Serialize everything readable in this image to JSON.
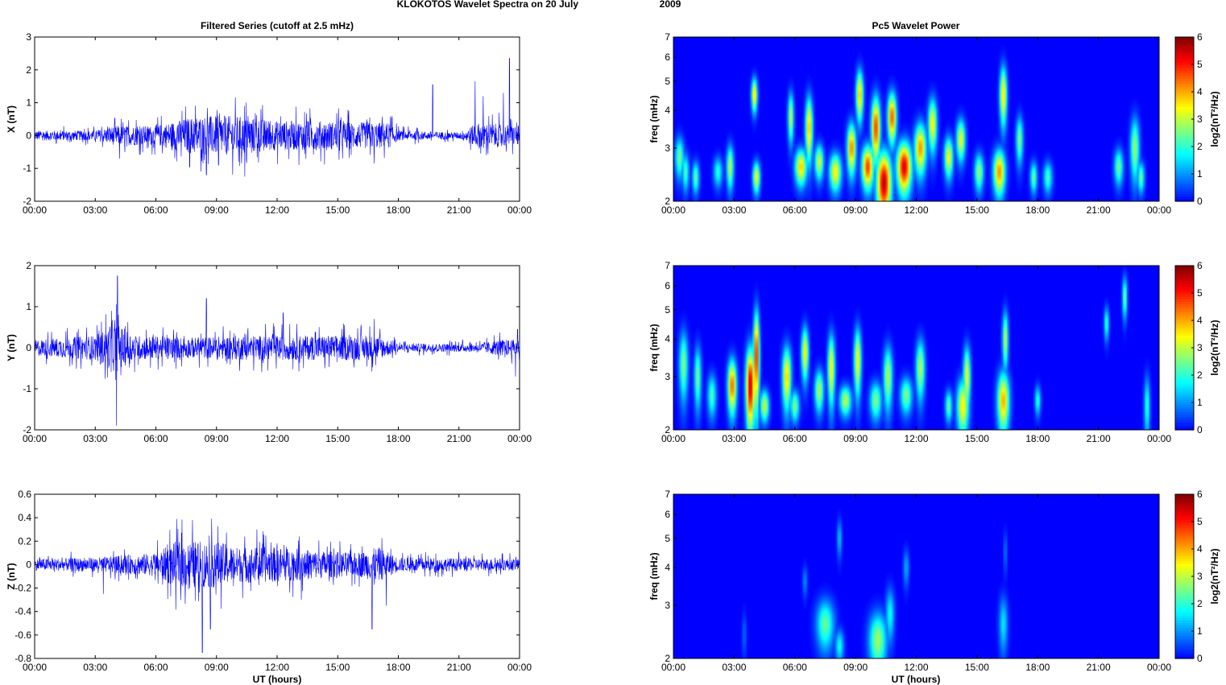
{
  "figure": {
    "title_left": "KLOKOTOS Wavelet Spectra on 20 July",
    "title_right": "2009",
    "left_column_title": "Filtered Series (cutoff at 2.5 mHz)",
    "right_column_title": "Pc5 Wavelet Power",
    "xlabel": "UT (hours)"
  },
  "colors": {
    "series_line": "#0000ff",
    "colormap": "jet"
  },
  "chart_data": [
    {
      "type": "line",
      "panel": "X",
      "ylabel": "X (nT)",
      "x_ticks": [
        "00:00",
        "03:00",
        "06:00",
        "09:00",
        "12:00",
        "15:00",
        "18:00",
        "21:00",
        "00:00"
      ],
      "xlim_hours": [
        0,
        24
      ],
      "ylim": [
        -2,
        3
      ],
      "y_ticks": [
        "-2",
        "-1",
        "0",
        "1",
        "2",
        "3"
      ],
      "noise_envelope": [
        [
          0,
          0.15
        ],
        [
          3,
          0.15
        ],
        [
          4,
          0.3
        ],
        [
          6,
          0.3
        ],
        [
          8,
          0.6
        ],
        [
          10,
          0.6
        ],
        [
          12,
          0.45
        ],
        [
          14,
          0.45
        ],
        [
          16,
          0.4
        ],
        [
          17.5,
          0.4
        ],
        [
          18,
          0.15
        ],
        [
          21,
          0.1
        ],
        [
          22,
          0.4
        ],
        [
          24,
          0.3
        ]
      ],
      "spikes": [
        [
          4.2,
          -0.7
        ],
        [
          8.5,
          -1.2
        ],
        [
          9.1,
          -0.9
        ],
        [
          10.4,
          -1.25
        ],
        [
          11.2,
          0.8
        ],
        [
          16.8,
          -0.85
        ],
        [
          19.7,
          1.55
        ],
        [
          21.8,
          1.65
        ],
        [
          22.2,
          1.2
        ],
        [
          23.5,
          2.35
        ],
        [
          23.2,
          1.3
        ]
      ]
    },
    {
      "type": "line",
      "panel": "Y",
      "ylabel": "Y (nT)",
      "x_ticks": [
        "00:00",
        "03:00",
        "06:00",
        "09:00",
        "12:00",
        "15:00",
        "18:00",
        "21:00",
        "00:00"
      ],
      "xlim_hours": [
        0,
        24
      ],
      "ylim": [
        -2,
        2
      ],
      "y_ticks": [
        "-2",
        "-1",
        "0",
        "1",
        "2"
      ],
      "noise_envelope": [
        [
          0,
          0.2
        ],
        [
          3,
          0.3
        ],
        [
          4,
          0.6
        ],
        [
          5,
          0.3
        ],
        [
          8,
          0.25
        ],
        [
          10,
          0.3
        ],
        [
          14,
          0.3
        ],
        [
          17,
          0.3
        ],
        [
          18,
          0.1
        ],
        [
          22,
          0.1
        ],
        [
          23,
          0.2
        ],
        [
          24,
          0.2
        ]
      ],
      "spikes": [
        [
          4.1,
          1.75
        ],
        [
          4.05,
          -1.9
        ],
        [
          3.8,
          0.9
        ],
        [
          8.5,
          1.2
        ],
        [
          12.3,
          0.85
        ],
        [
          16.8,
          0.7
        ],
        [
          23.8,
          -0.7
        ],
        [
          23.9,
          0.45
        ]
      ]
    },
    {
      "type": "line",
      "panel": "Z",
      "ylabel": "Z (nT)",
      "x_ticks": [
        "00:00",
        "03:00",
        "06:00",
        "09:00",
        "12:00",
        "15:00",
        "18:00",
        "21:00",
        "00:00"
      ],
      "xlim_hours": [
        0,
        24
      ],
      "ylim": [
        -0.8,
        0.6
      ],
      "y_ticks": [
        "-0.8",
        "-0.6",
        "-0.4",
        "-0.2",
        "0",
        "0.2",
        "0.4",
        "0.6"
      ],
      "noise_envelope": [
        [
          0,
          0.05
        ],
        [
          3,
          0.06
        ],
        [
          6,
          0.1
        ],
        [
          7,
          0.2
        ],
        [
          9,
          0.2
        ],
        [
          10,
          0.15
        ],
        [
          12,
          0.15
        ],
        [
          14,
          0.12
        ],
        [
          16,
          0.1
        ],
        [
          17,
          0.15
        ],
        [
          18,
          0.06
        ],
        [
          24,
          0.05
        ]
      ],
      "spikes": [
        [
          8.3,
          -0.75
        ],
        [
          8.7,
          -0.55
        ],
        [
          11,
          0.3
        ],
        [
          12,
          0.18
        ],
        [
          16.7,
          -0.55
        ],
        [
          17.4,
          -0.35
        ],
        [
          13.2,
          -0.3
        ],
        [
          3.4,
          -0.25
        ]
      ]
    },
    {
      "type": "heatmap",
      "panel": "X",
      "ylabel": "freq (mHz)",
      "yscale": "log",
      "ylim": [
        2,
        7
      ],
      "y_ticks": [
        "2",
        "3",
        "4",
        "5",
        "6",
        "7"
      ],
      "x_ticks": [
        "00:00",
        "03:00",
        "06:00",
        "09:00",
        "12:00",
        "15:00",
        "18:00",
        "21:00",
        "00:00"
      ],
      "xlim_hours": [
        0,
        24
      ],
      "colorbar": {
        "label": "log2(nT²/Hz)",
        "range": [
          0,
          6
        ],
        "ticks": [
          "0",
          "1",
          "2",
          "3",
          "4",
          "5",
          "6"
        ]
      },
      "blobs": [
        [
          0.3,
          2.8,
          0.15,
          0.3,
          2.5
        ],
        [
          0.6,
          2.5,
          0.12,
          0.25,
          2.2
        ],
        [
          1.1,
          2.4,
          0.12,
          0.2,
          2.4
        ],
        [
          2.2,
          2.5,
          0.15,
          0.2,
          2
        ],
        [
          2.8,
          2.6,
          0.12,
          0.3,
          3
        ],
        [
          4.1,
          2.4,
          0.12,
          0.2,
          3.5
        ],
        [
          4.0,
          4.5,
          0.1,
          0.4,
          3.8
        ],
        [
          5.8,
          3.8,
          0.1,
          0.5,
          3
        ],
        [
          6.3,
          2.6,
          0.2,
          0.25,
          3.8
        ],
        [
          6.7,
          3.5,
          0.12,
          0.6,
          4
        ],
        [
          7.2,
          2.7,
          0.15,
          0.25,
          3.2
        ],
        [
          8.0,
          2.5,
          0.2,
          0.25,
          3.6
        ],
        [
          8.8,
          3.0,
          0.15,
          0.4,
          4.3
        ],
        [
          9.2,
          4.5,
          0.12,
          0.6,
          4
        ],
        [
          9.6,
          2.6,
          0.2,
          0.3,
          4.8
        ],
        [
          10.0,
          3.5,
          0.15,
          0.6,
          4.8
        ],
        [
          10.4,
          2.3,
          0.25,
          0.4,
          5.6
        ],
        [
          10.8,
          3.8,
          0.15,
          0.5,
          4.6
        ],
        [
          11.4,
          2.6,
          0.25,
          0.35,
          5.4
        ],
        [
          12.2,
          3.0,
          0.2,
          0.4,
          4.2
        ],
        [
          12.8,
          3.6,
          0.15,
          0.5,
          3.6
        ],
        [
          13.6,
          2.8,
          0.15,
          0.3,
          3.5
        ],
        [
          14.2,
          3.2,
          0.15,
          0.35,
          3.4
        ],
        [
          15.1,
          2.5,
          0.15,
          0.25,
          2.8
        ],
        [
          16.1,
          2.5,
          0.2,
          0.3,
          4.2
        ],
        [
          16.3,
          4.5,
          0.12,
          0.7,
          3.8
        ],
        [
          17.1,
          3.2,
          0.12,
          0.4,
          2.6
        ],
        [
          17.8,
          2.4,
          0.12,
          0.2,
          2.4
        ],
        [
          18.5,
          2.4,
          0.15,
          0.2,
          2.2
        ],
        [
          22.0,
          2.6,
          0.15,
          0.25,
          2.5
        ],
        [
          22.8,
          3.0,
          0.15,
          0.5,
          2.8
        ],
        [
          23.1,
          2.4,
          0.12,
          0.2,
          2.4
        ]
      ]
    },
    {
      "type": "heatmap",
      "panel": "Y",
      "ylabel": "freq (mHz)",
      "yscale": "log",
      "ylim": [
        2,
        7
      ],
      "y_ticks": [
        "2",
        "3",
        "4",
        "5",
        "6",
        "7"
      ],
      "x_ticks": [
        "00:00",
        "03:00",
        "06:00",
        "09:00",
        "12:00",
        "15:00",
        "18:00",
        "21:00",
        "00:00"
      ],
      "xlim_hours": [
        0,
        24
      ],
      "colorbar": {
        "label": "log2(nT²/Hz)",
        "range": [
          0,
          6
        ],
        "ticks": [
          "0",
          "1",
          "2",
          "3",
          "4",
          "5",
          "6"
        ]
      },
      "blobs": [
        [
          0.5,
          3.3,
          0.15,
          0.6,
          2.6
        ],
        [
          1.2,
          3.0,
          0.12,
          0.5,
          2.5
        ],
        [
          1.9,
          2.6,
          0.15,
          0.3,
          2.2
        ],
        [
          2.9,
          2.8,
          0.15,
          0.4,
          4.5
        ],
        [
          3.8,
          2.8,
          0.15,
          0.6,
          5.6
        ],
        [
          4.1,
          3.5,
          0.1,
          0.9,
          5.2
        ],
        [
          4.5,
          2.4,
          0.15,
          0.2,
          3.2
        ],
        [
          5.6,
          3.0,
          0.15,
          0.5,
          3.8
        ],
        [
          6.0,
          2.4,
          0.15,
          0.2,
          2.6
        ],
        [
          6.5,
          3.6,
          0.12,
          0.5,
          3.6
        ],
        [
          7.2,
          2.7,
          0.15,
          0.3,
          3
        ],
        [
          7.8,
          3.2,
          0.12,
          0.6,
          3.6
        ],
        [
          8.5,
          2.5,
          0.2,
          0.2,
          3
        ],
        [
          9.1,
          3.4,
          0.12,
          0.6,
          3.6
        ],
        [
          10.0,
          2.5,
          0.2,
          0.25,
          2.6
        ],
        [
          10.6,
          3.0,
          0.15,
          0.5,
          3
        ],
        [
          11.5,
          2.6,
          0.2,
          0.25,
          2.6
        ],
        [
          12.2,
          3.2,
          0.15,
          0.5,
          3
        ],
        [
          13.6,
          2.4,
          0.12,
          0.2,
          2.4
        ],
        [
          14.3,
          2.4,
          0.2,
          0.35,
          3.6
        ],
        [
          14.5,
          3.0,
          0.12,
          0.5,
          3.4
        ],
        [
          16.3,
          2.5,
          0.2,
          0.4,
          4
        ],
        [
          16.4,
          4.0,
          0.1,
          0.6,
          3
        ],
        [
          18.0,
          2.5,
          0.1,
          0.2,
          2
        ],
        [
          21.4,
          4.5,
          0.08,
          0.4,
          2.2
        ],
        [
          22.3,
          5.5,
          0.08,
          0.6,
          2.6
        ],
        [
          23.4,
          2.4,
          0.1,
          0.4,
          2
        ]
      ]
    },
    {
      "type": "heatmap",
      "panel": "Z",
      "ylabel": "freq (mHz)",
      "yscale": "log",
      "ylim": [
        2,
        7
      ],
      "y_ticks": [
        "2",
        "3",
        "4",
        "5",
        "6",
        "7"
      ],
      "x_ticks": [
        "00:00",
        "03:00",
        "06:00",
        "09:00",
        "12:00",
        "15:00",
        "18:00",
        "21:00",
        "00:00"
      ],
      "xlim_hours": [
        0,
        24
      ],
      "colorbar": {
        "label": "log2(nT²/Hz)",
        "range": [
          0,
          6
        ],
        "ticks": [
          "0",
          "1",
          "2",
          "3",
          "4",
          "5",
          "6"
        ]
      },
      "blobs": [
        [
          7.5,
          2.6,
          0.3,
          0.35,
          2.4
        ],
        [
          8.2,
          2.2,
          0.15,
          0.2,
          1.8
        ],
        [
          8.2,
          5.0,
          0.08,
          0.5,
          1.4
        ],
        [
          10.1,
          2.3,
          0.3,
          0.35,
          2.8
        ],
        [
          10.7,
          2.8,
          0.15,
          0.4,
          1.8
        ],
        [
          11.5,
          4.0,
          0.1,
          0.4,
          1.2
        ],
        [
          6.5,
          3.6,
          0.08,
          0.3,
          1
        ],
        [
          16.3,
          2.6,
          0.15,
          0.4,
          1.6
        ],
        [
          16.4,
          4.5,
          0.06,
          0.5,
          0.9
        ],
        [
          3.5,
          2.4,
          0.08,
          0.3,
          0.7
        ]
      ]
    }
  ]
}
